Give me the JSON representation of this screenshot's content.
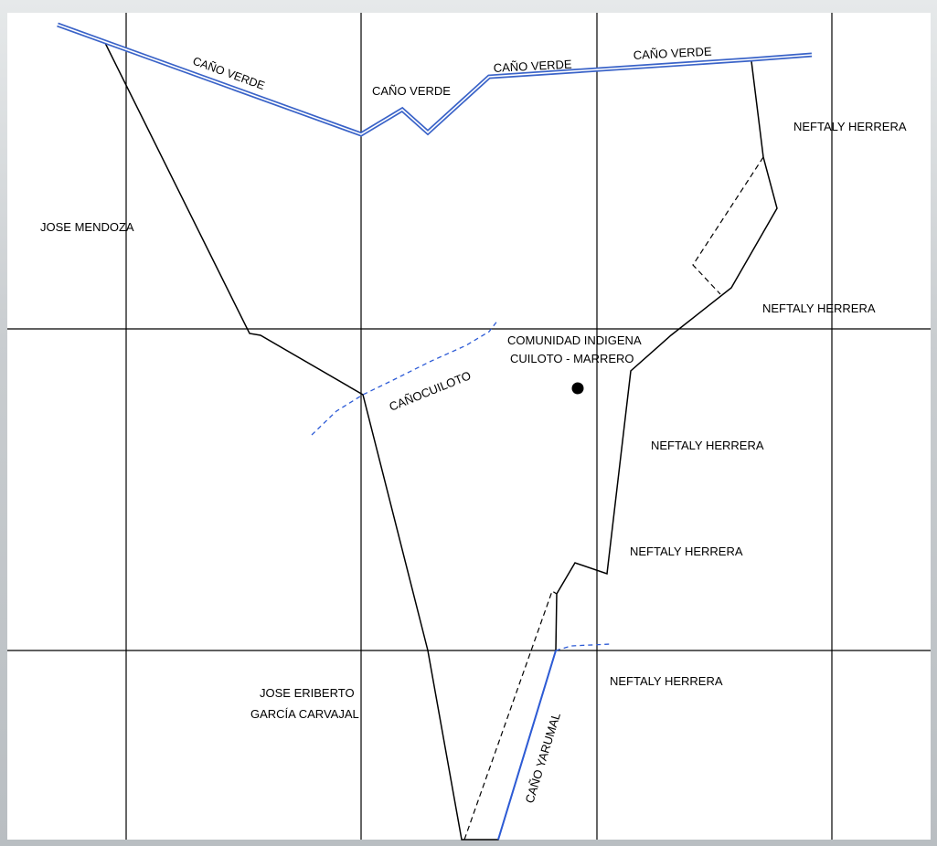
{
  "map": {
    "owners": {
      "jose_mendoza": "JOSE MENDOZA",
      "neftaly_1": "NEFTALY HERRERA",
      "neftaly_2": "NEFTALY HERRERA",
      "neftaly_3": "NEFTALY HERRERA",
      "neftaly_4": "NEFTALY HERRERA",
      "neftaly_5": "NEFTALY HERRERA",
      "jose_eriberto_line1": "JOSE ERIBERTO",
      "jose_eriberto_line2": "GARCÍA CARVAJAL"
    },
    "community": {
      "line1": "COMUNIDAD INDIGENA",
      "line2": "CUILOTO - MARRERO"
    },
    "waterways": {
      "cano_verde_1": "CAÑO VERDE",
      "cano_verde_2": "CAÑO VERDE",
      "cano_verde_3": "CAÑO VERDE",
      "cano_verde_4": "CAÑO VERDE",
      "cano_culoto": "CAÑOCUILOTO",
      "cano_yarumal": "CAÑO YARUMAL"
    },
    "colors": {
      "river": "#3a63c8",
      "stream": "#2d5bd6",
      "boundary": "#000000",
      "grid": "#000000"
    }
  }
}
